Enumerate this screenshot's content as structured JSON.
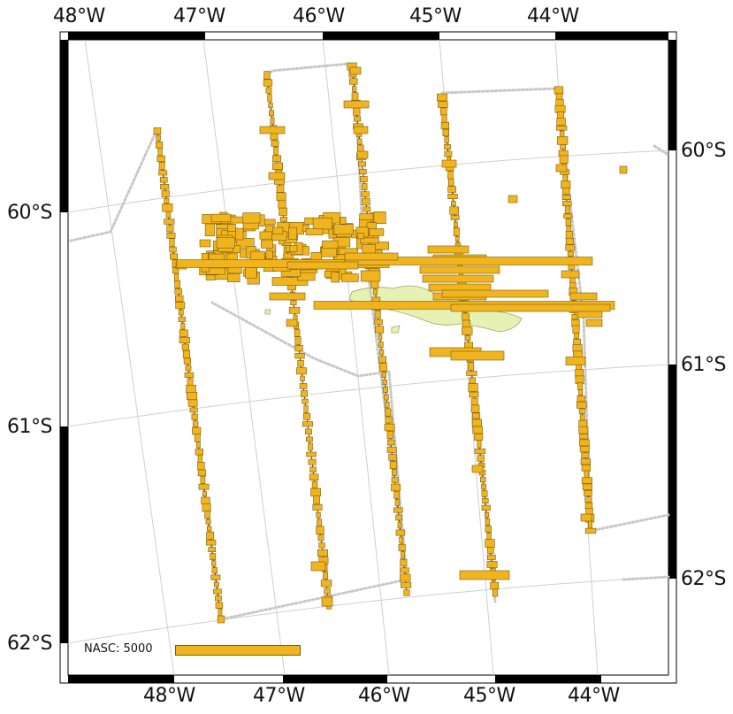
{
  "map": {
    "lon_labels_top": [
      "48°W",
      "47°W",
      "46°W",
      "45°W",
      "44°W"
    ],
    "lon_labels_bottom": [
      "48°W",
      "47°W",
      "46°W",
      "45°W",
      "44°W"
    ],
    "lat_labels_left": [
      "60°S",
      "61°S",
      "62°S"
    ],
    "lat_labels_right": [
      "60°S",
      "61°S",
      "62°S"
    ],
    "colors": {
      "nasc_fill": "#f0b41e",
      "nasc_stroke": "#7a5a10",
      "track": "#c8c8c8",
      "island": "#e6f2b4",
      "graticule": "#cfcfcf",
      "frame": "#000000"
    }
  },
  "legend": {
    "label": "NASC: 5000",
    "reference_value": 5000
  }
}
